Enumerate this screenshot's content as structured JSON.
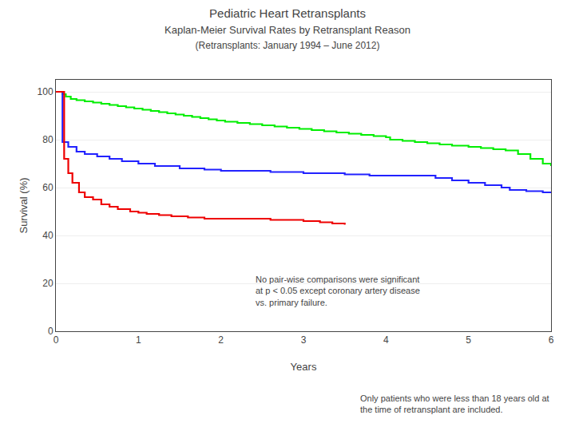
{
  "chart_data": {
    "type": "line",
    "title": "Pediatric Heart Retransplants",
    "subtitle": [
      "Kaplan-Meier Survival Rates by Retransplant Reason",
      "(Retransplants: January 1994 – June 2012)"
    ],
    "xlabel": "Years",
    "ylabel": "Survival (%)",
    "line_style": "steps",
    "grid": "y",
    "xlim": [
      0,
      6
    ],
    "xticks": [
      0,
      1,
      2,
      3,
      4,
      5,
      6
    ],
    "ylim": [
      0,
      105
    ],
    "yticks": [
      0,
      20,
      40,
      60,
      80,
      100
    ],
    "series": [
      {
        "color": "#00ee00",
        "x": [
          0,
          0.08,
          0.12,
          0.18,
          0.25,
          0.35,
          0.45,
          0.55,
          0.65,
          0.75,
          0.85,
          0.95,
          1.05,
          1.15,
          1.25,
          1.35,
          1.45,
          1.55,
          1.65,
          1.75,
          1.85,
          1.95,
          2.05,
          2.2,
          2.35,
          2.5,
          2.65,
          2.8,
          2.95,
          3.1,
          3.25,
          3.4,
          3.55,
          3.7,
          3.85,
          4.0,
          4.05,
          4.2,
          4.35,
          4.5,
          4.65,
          4.8,
          5.0,
          5.15,
          5.3,
          5.45,
          5.6,
          5.75,
          5.9,
          6.0
        ],
        "values": [
          100,
          99,
          98,
          97,
          96.5,
          96,
          95.5,
          95,
          94.5,
          94,
          93.5,
          93,
          92.5,
          92,
          91.5,
          91,
          90.5,
          90,
          89.5,
          89,
          88.5,
          88,
          87.5,
          87,
          86.5,
          86,
          85.5,
          85,
          84.5,
          84,
          83.5,
          83,
          82.5,
          82,
          81.5,
          81,
          80,
          79.5,
          79,
          78.5,
          78,
          77.5,
          77,
          76.5,
          76,
          75.5,
          74,
          72,
          70,
          69
        ]
      },
      {
        "color": "#2222ff",
        "x": [
          0,
          0.08,
          0.15,
          0.25,
          0.35,
          0.5,
          0.65,
          0.8,
          1.0,
          1.2,
          1.5,
          1.8,
          2.0,
          2.3,
          2.6,
          3.0,
          3.5,
          3.8,
          4.0,
          4.3,
          4.6,
          4.8,
          5.0,
          5.2,
          5.4,
          5.5,
          5.7,
          5.9,
          6.0
        ],
        "values": [
          100,
          79,
          77,
          75,
          74,
          73,
          72,
          71,
          70,
          69,
          68,
          67.5,
          67,
          67,
          66.5,
          66,
          65.5,
          65,
          65,
          65,
          64,
          63,
          62,
          61,
          60,
          59,
          58.5,
          58,
          58
        ]
      },
      {
        "color": "#ee0000",
        "x": [
          0,
          0.1,
          0.15,
          0.2,
          0.28,
          0.35,
          0.45,
          0.55,
          0.65,
          0.75,
          0.9,
          1.0,
          1.1,
          1.25,
          1.4,
          1.6,
          1.8,
          2.0,
          2.2,
          2.4,
          2.6,
          2.8,
          3.0,
          3.2,
          3.35,
          3.5
        ],
        "values": [
          100,
          72,
          66,
          62,
          58,
          56,
          55,
          53,
          52,
          51,
          50,
          49.5,
          49,
          48.5,
          48,
          47.5,
          47,
          47,
          47,
          47,
          46.5,
          46.5,
          46,
          45.5,
          45,
          44.5
        ]
      }
    ],
    "annotations": [
      "No pair-wise comparisons were significant\nat p < 0.05 except coronary artery disease\nvs. primary failure.",
      "Only patients who were less than 18 years old at\nthe time of retransplant are included."
    ]
  }
}
